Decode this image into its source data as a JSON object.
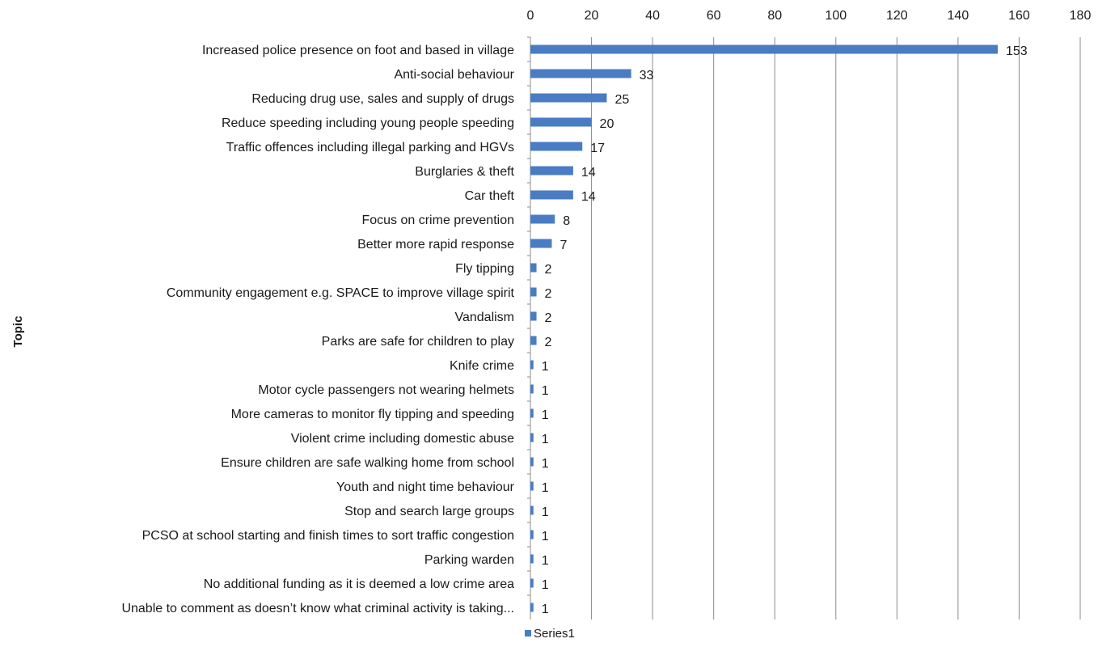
{
  "chart_data": {
    "type": "bar",
    "orientation": "horizontal",
    "ylabel": "Topic",
    "xlabel": "",
    "xlim": [
      0,
      180
    ],
    "xticks": [
      0,
      20,
      40,
      60,
      80,
      100,
      120,
      140,
      160,
      180
    ],
    "x_axis_position": "top",
    "grid": true,
    "legend_position": "bottom",
    "bar_color": "#4a7cc4",
    "categories": [
      "Increased police presence on foot and based in village",
      "Anti-social behaviour",
      "Reducing drug use, sales and supply of drugs",
      "Reduce speeding including young people speeding",
      "Traffic offences including illegal parking and HGVs",
      "Burglaries & theft",
      "Car theft",
      "Focus on crime prevention",
      "Better more rapid response",
      "Fly tipping",
      "Community engagement e.g. SPACE to improve village spirit",
      "Vandalism",
      "Parks are safe for children to play",
      "Knife crime",
      "Motor cycle passengers not wearing helmets",
      "More cameras to monitor fly tipping and speeding",
      "Violent crime including domestic abuse",
      "Ensure children are safe walking home from school",
      "Youth and night time behaviour",
      "Stop and search large groups",
      "PCSO at school starting and finish times to sort traffic congestion",
      "Parking warden",
      "No additional funding as it is deemed a low crime area",
      "Unable to comment as doesn’t know what criminal activity is taking..."
    ],
    "series": [
      {
        "name": "Series1",
        "values": [
          153,
          33,
          25,
          20,
          17,
          14,
          14,
          8,
          7,
          2,
          2,
          2,
          2,
          1,
          1,
          1,
          1,
          1,
          1,
          1,
          1,
          1,
          1,
          1
        ]
      }
    ]
  }
}
